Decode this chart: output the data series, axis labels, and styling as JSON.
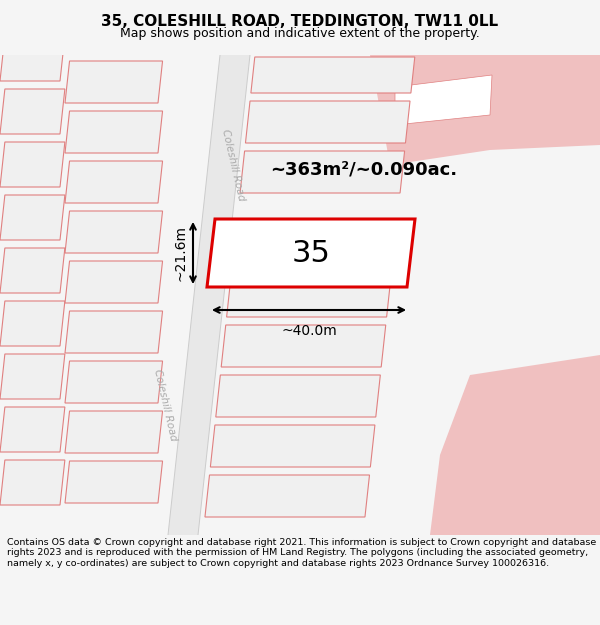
{
  "title": "35, COLESHILL ROAD, TEDDINGTON, TW11 0LL",
  "subtitle": "Map shows position and indicative extent of the property.",
  "area_label": "~363m²/~0.090ac.",
  "width_label": "~40.0m",
  "height_label": "~21.6m",
  "number_label": "35",
  "road_label_upper": "Coleshill Road",
  "road_label_lower": "Coleshill Road",
  "copyright_text": "Contains OS data © Crown copyright and database right 2021. This information is subject to Crown copyright and database rights 2023 and is reproduced with the permission of HM Land Registry. The polygons (including the associated geometry, namely x, y co-ordinates) are subject to Crown copyright and database rights 2023 Ordnance Survey 100026316.",
  "bg_color": "#f5f5f5",
  "map_bg": "#ffffff",
  "building_fill": "#f0f0f0",
  "building_edge": "#e08080",
  "road_fill": "#e0e0e0",
  "plot_fill": "#ffffff",
  "plot_edge": "#dd0000",
  "pink_fill": "#f0c0c0",
  "pink_edge": "#f0c0c0",
  "title_fontsize": 11,
  "subtitle_fontsize": 9,
  "copyright_fontsize": 6.8
}
